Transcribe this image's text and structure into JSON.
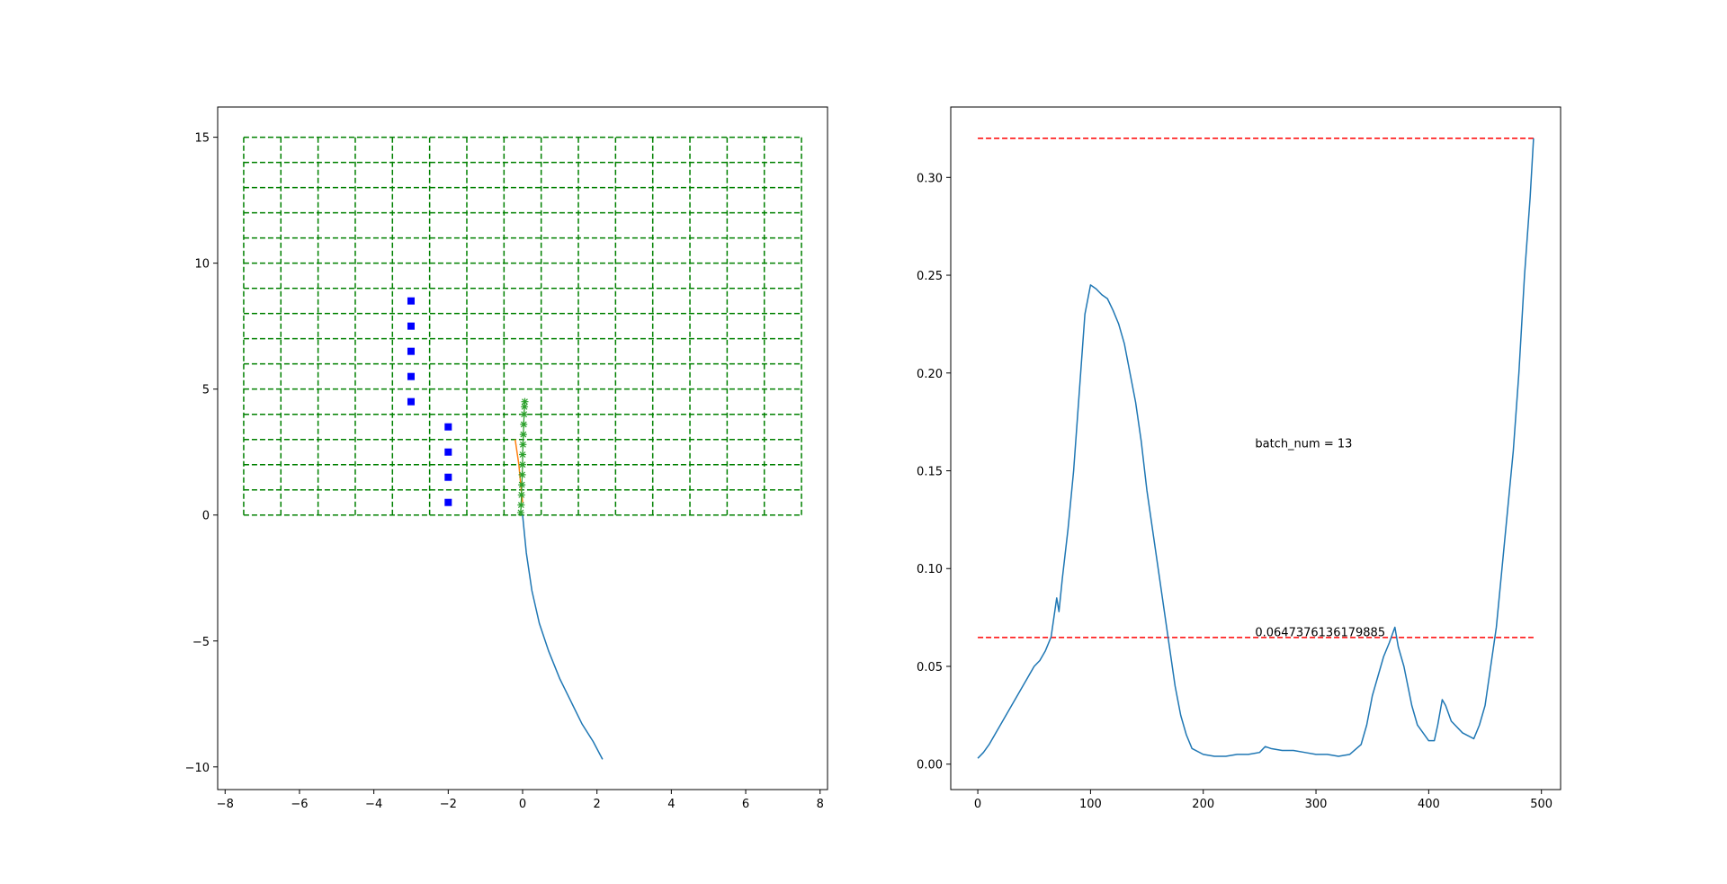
{
  "chart_data": [
    {
      "type": "scatter",
      "xlim": [
        -8.2,
        8.2
      ],
      "ylim": [
        -10.9,
        16.2
      ],
      "xticks": [
        -8,
        -6,
        -4,
        -2,
        0,
        2,
        4,
        6,
        8
      ],
      "yticks": [
        -10,
        -5,
        0,
        5,
        10,
        15
      ],
      "xtick_labels": [
        "−8",
        "−6",
        "−4",
        "−2",
        "0",
        "2",
        "4",
        "6",
        "8"
      ],
      "ytick_labels": [
        "−10",
        "−5",
        "0",
        "5",
        "10",
        "15"
      ],
      "grid_lines": {
        "color": "#008000",
        "vertical_x": [
          -7.5,
          -6.5,
          -5.5,
          -4.5,
          -3.5,
          -2.5,
          -1.5,
          -0.5,
          0.5,
          1.5,
          2.5,
          3.5,
          4.5,
          5.5,
          6.5,
          7.5
        ],
        "horizontal_y": [
          0,
          1,
          2,
          3,
          4,
          5,
          6,
          7,
          8,
          9,
          10,
          11,
          12,
          13,
          14,
          15
        ],
        "x_range": [
          -7.5,
          7.5
        ],
        "y_range": [
          0,
          15
        ]
      },
      "obstacles": {
        "color": "#0000ff",
        "points": [
          [
            -3,
            8.5
          ],
          [
            -3,
            7.5
          ],
          [
            -3,
            6.5
          ],
          [
            -3,
            5.5
          ],
          [
            -3,
            4.5
          ],
          [
            -2,
            3.5
          ],
          [
            -2,
            2.5
          ],
          [
            -2,
            1.5
          ],
          [
            -2,
            0.5
          ]
        ]
      },
      "trajectory": {
        "color": "#1f77b4",
        "points": [
          [
            0,
            0
          ],
          [
            0.1,
            -1.5
          ],
          [
            0.25,
            -3
          ],
          [
            0.45,
            -4.3
          ],
          [
            0.7,
            -5.4
          ],
          [
            1.0,
            -6.5
          ],
          [
            1.3,
            -7.4
          ],
          [
            1.6,
            -8.3
          ],
          [
            1.9,
            -9.0
          ],
          [
            2.15,
            -9.7
          ]
        ]
      },
      "planned_path": {
        "color": "#ff7f0e",
        "points": [
          [
            -0.2,
            3.0
          ],
          [
            -0.1,
            2.0
          ],
          [
            -0.05,
            1.2
          ],
          [
            0,
            0.5
          ]
        ]
      },
      "markers": {
        "color": "#2ca02c",
        "points": [
          [
            -0.05,
            0.1
          ],
          [
            -0.04,
            0.4
          ],
          [
            -0.03,
            0.8
          ],
          [
            -0.02,
            1.2
          ],
          [
            -0.01,
            1.6
          ],
          [
            0,
            2.0
          ],
          [
            0,
            2.4
          ],
          [
            0.01,
            2.8
          ],
          [
            0.02,
            3.2
          ],
          [
            0.03,
            3.6
          ],
          [
            0.04,
            4.0
          ],
          [
            0.05,
            4.3
          ],
          [
            0.06,
            4.5
          ]
        ]
      }
    },
    {
      "type": "line",
      "xlim": [
        -24,
        517
      ],
      "ylim": [
        -0.013,
        0.336
      ],
      "xticks": [
        0,
        100,
        200,
        300,
        400,
        500
      ],
      "yticks": [
        0.0,
        0.05,
        0.1,
        0.15,
        0.2,
        0.25,
        0.3
      ],
      "xtick_labels": [
        "0",
        "100",
        "200",
        "300",
        "400",
        "500"
      ],
      "ytick_labels": [
        "0.00",
        "0.05",
        "0.10",
        "0.15",
        "0.20",
        "0.25",
        "0.30"
      ],
      "series": [
        {
          "color": "#1f77b4",
          "x": [
            0,
            5,
            10,
            15,
            20,
            25,
            30,
            35,
            40,
            45,
            50,
            55,
            60,
            65,
            70,
            72,
            75,
            80,
            85,
            90,
            95,
            100,
            105,
            110,
            115,
            120,
            125,
            130,
            135,
            140,
            145,
            150,
            155,
            160,
            165,
            170,
            175,
            180,
            185,
            190,
            200,
            210,
            220,
            230,
            240,
            250,
            255,
            260,
            270,
            280,
            290,
            300,
            310,
            320,
            330,
            340,
            345,
            350,
            355,
            360,
            365,
            370,
            373,
            378,
            385,
            390,
            400,
            405,
            408,
            412,
            415,
            420,
            430,
            440,
            445,
            450,
            455,
            460,
            465,
            470,
            475,
            480,
            485,
            490,
            493
          ],
          "y": [
            0.003,
            0.006,
            0.01,
            0.015,
            0.02,
            0.025,
            0.03,
            0.035,
            0.04,
            0.045,
            0.05,
            0.053,
            0.058,
            0.065,
            0.085,
            0.078,
            0.095,
            0.12,
            0.15,
            0.19,
            0.23,
            0.245,
            0.243,
            0.24,
            0.238,
            0.232,
            0.225,
            0.215,
            0.2,
            0.185,
            0.165,
            0.14,
            0.12,
            0.1,
            0.08,
            0.06,
            0.04,
            0.025,
            0.015,
            0.008,
            0.005,
            0.004,
            0.004,
            0.005,
            0.005,
            0.006,
            0.009,
            0.008,
            0.007,
            0.007,
            0.006,
            0.005,
            0.005,
            0.004,
            0.005,
            0.01,
            0.02,
            0.035,
            0.045,
            0.055,
            0.062,
            0.07,
            0.06,
            0.05,
            0.03,
            0.02,
            0.012,
            0.012,
            0.02,
            0.033,
            0.03,
            0.022,
            0.016,
            0.013,
            0.02,
            0.03,
            0.05,
            0.07,
            0.1,
            0.13,
            0.16,
            0.2,
            0.25,
            0.29,
            0.32
          ]
        }
      ],
      "hlines": [
        {
          "y": 0.32,
          "x_range": [
            0,
            493
          ],
          "color": "#ff0000",
          "style": "dashed"
        },
        {
          "y": 0.0647376136179885,
          "x_range": [
            0,
            493
          ],
          "color": "#ff0000",
          "style": "dashed"
        }
      ],
      "annotations": [
        {
          "text": "batch_num = 13",
          "x": 246,
          "y": 0.162
        },
        {
          "text": "0.0647376136179885",
          "x": 246,
          "y": 0.0655
        }
      ]
    }
  ]
}
